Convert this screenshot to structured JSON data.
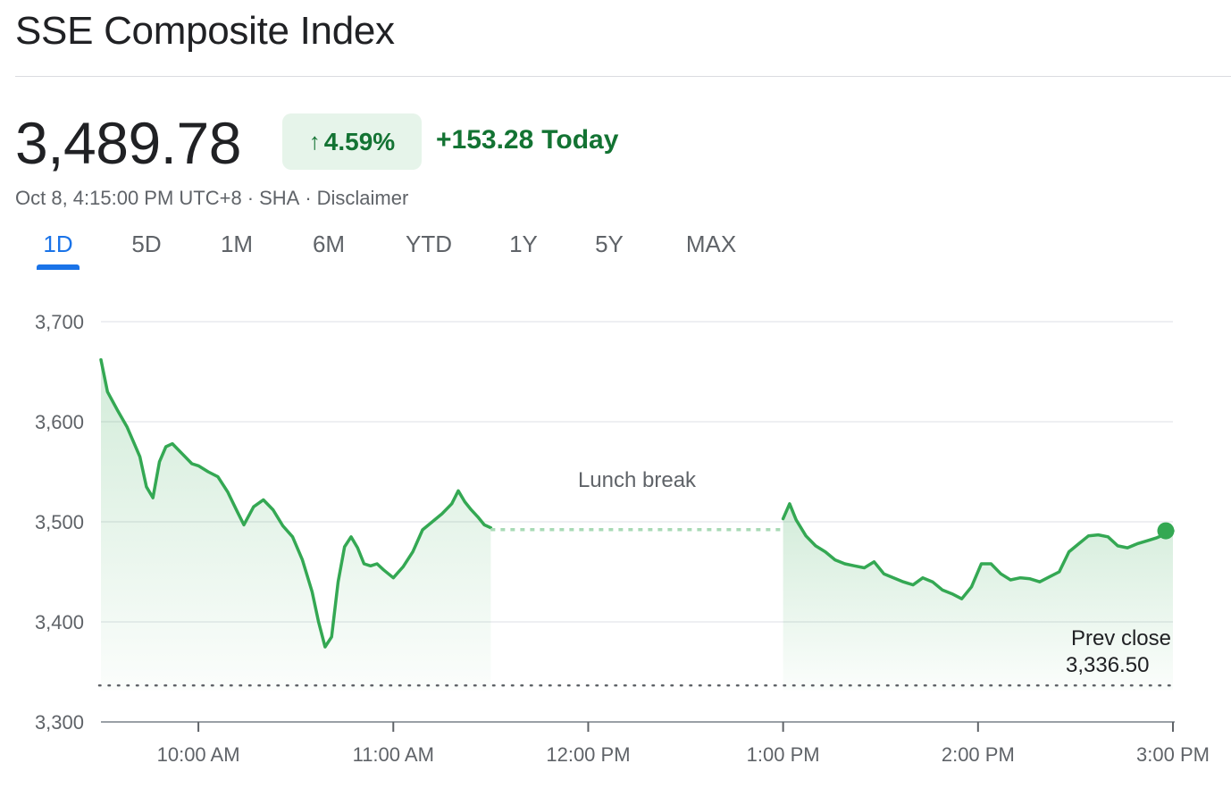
{
  "header": {
    "title": "SSE Composite Index",
    "price": "3,489.78",
    "change_percent": "4.59%",
    "change_arrow_icon": "arrow-up-icon",
    "change_value": "+153.28",
    "change_period": "Today",
    "timestamp": "Oct 8, 4:15:00 PM UTC+8",
    "exchange": "SHA",
    "disclaimer": "Disclaimer"
  },
  "tabs": [
    {
      "label": "1D",
      "active": true
    },
    {
      "label": "5D",
      "active": false
    },
    {
      "label": "1M",
      "active": false
    },
    {
      "label": "6M",
      "active": false
    },
    {
      "label": "YTD",
      "active": false
    },
    {
      "label": "1Y",
      "active": false
    },
    {
      "label": "5Y",
      "active": false
    },
    {
      "label": "MAX",
      "active": false
    }
  ],
  "colors": {
    "line": "#34a853",
    "positive_text": "#137333",
    "badge_bg": "#e6f4ea",
    "active_tab": "#1a73e8",
    "grid": "#e8eaed",
    "axis_text": "#5f6368"
  },
  "chart_data": {
    "type": "line",
    "y_ticks": [
      "3,700",
      "3,600",
      "3,500",
      "3,400",
      "3,300"
    ],
    "ylim": [
      3300,
      3700
    ],
    "x_ticks": [
      "10:00 AM",
      "11:00 AM",
      "12:00 PM",
      "1:00 PM",
      "2:00 PM",
      "3:00 PM"
    ],
    "x_range": [
      "9:30",
      "15:00"
    ],
    "grid": true,
    "prev_close": {
      "label": "Prev close",
      "value_label": "3,336.50",
      "value": 3336.5
    },
    "gap_annotation": "Lunch break",
    "last_point": {
      "x": "15:00",
      "y": 3491
    },
    "series": [
      {
        "segment": "morning",
        "points": [
          [
            "9:30",
            3662
          ],
          [
            "9:32",
            3630
          ],
          [
            "9:35",
            3612
          ],
          [
            "9:38",
            3595
          ],
          [
            "9:40",
            3580
          ],
          [
            "9:42",
            3565
          ],
          [
            "9:44",
            3535
          ],
          [
            "9:46",
            3524
          ],
          [
            "9:48",
            3560
          ],
          [
            "9:50",
            3575
          ],
          [
            "9:52",
            3578
          ],
          [
            "9:55",
            3568
          ],
          [
            "9:58",
            3558
          ],
          [
            "10:00",
            3556
          ],
          [
            "10:03",
            3550
          ],
          [
            "10:06",
            3545
          ],
          [
            "10:09",
            3530
          ],
          [
            "10:12",
            3510
          ],
          [
            "10:14",
            3497
          ],
          [
            "10:17",
            3515
          ],
          [
            "10:20",
            3522
          ],
          [
            "10:23",
            3512
          ],
          [
            "10:26",
            3496
          ],
          [
            "10:29",
            3485
          ],
          [
            "10:32",
            3462
          ],
          [
            "10:35",
            3430
          ],
          [
            "10:37",
            3400
          ],
          [
            "10:39",
            3375
          ],
          [
            "10:41",
            3385
          ],
          [
            "10:43",
            3440
          ],
          [
            "10:45",
            3475
          ],
          [
            "10:47",
            3485
          ],
          [
            "10:49",
            3474
          ],
          [
            "10:51",
            3458
          ],
          [
            "10:53",
            3456
          ],
          [
            "10:55",
            3458
          ],
          [
            "10:57",
            3452
          ],
          [
            "11:00",
            3444
          ],
          [
            "11:03",
            3455
          ],
          [
            "11:06",
            3470
          ],
          [
            "11:09",
            3492
          ],
          [
            "11:12",
            3500
          ],
          [
            "11:15",
            3508
          ],
          [
            "11:18",
            3518
          ],
          [
            "11:20",
            3531
          ],
          [
            "11:22",
            3520
          ],
          [
            "11:24",
            3512
          ],
          [
            "11:26",
            3505
          ],
          [
            "11:28",
            3497
          ],
          [
            "11:30",
            3494
          ]
        ]
      },
      {
        "segment": "afternoon",
        "points": [
          [
            "13:00",
            3503
          ],
          [
            "13:02",
            3518
          ],
          [
            "13:04",
            3502
          ],
          [
            "13:07",
            3486
          ],
          [
            "13:10",
            3476
          ],
          [
            "13:13",
            3470
          ],
          [
            "13:16",
            3462
          ],
          [
            "13:19",
            3458
          ],
          [
            "13:22",
            3456
          ],
          [
            "13:25",
            3454
          ],
          [
            "13:28",
            3460
          ],
          [
            "13:31",
            3448
          ],
          [
            "13:34",
            3444
          ],
          [
            "13:37",
            3440
          ],
          [
            "13:40",
            3437
          ],
          [
            "13:43",
            3444
          ],
          [
            "13:46",
            3440
          ],
          [
            "13:49",
            3432
          ],
          [
            "13:52",
            3428
          ],
          [
            "13:55",
            3423
          ],
          [
            "13:58",
            3435
          ],
          [
            "14:01",
            3458
          ],
          [
            "14:04",
            3458
          ],
          [
            "14:07",
            3448
          ],
          [
            "14:10",
            3442
          ],
          [
            "14:13",
            3444
          ],
          [
            "14:16",
            3443
          ],
          [
            "14:19",
            3440
          ],
          [
            "14:22",
            3445
          ],
          [
            "14:25",
            3450
          ],
          [
            "14:28",
            3470
          ],
          [
            "14:31",
            3478
          ],
          [
            "14:34",
            3486
          ],
          [
            "14:37",
            3487
          ],
          [
            "14:40",
            3485
          ],
          [
            "14:43",
            3476
          ],
          [
            "14:46",
            3474
          ],
          [
            "14:49",
            3478
          ],
          [
            "14:52",
            3481
          ],
          [
            "14:55",
            3484
          ],
          [
            "14:58",
            3488
          ],
          [
            "15:00",
            3491
          ]
        ]
      }
    ]
  }
}
